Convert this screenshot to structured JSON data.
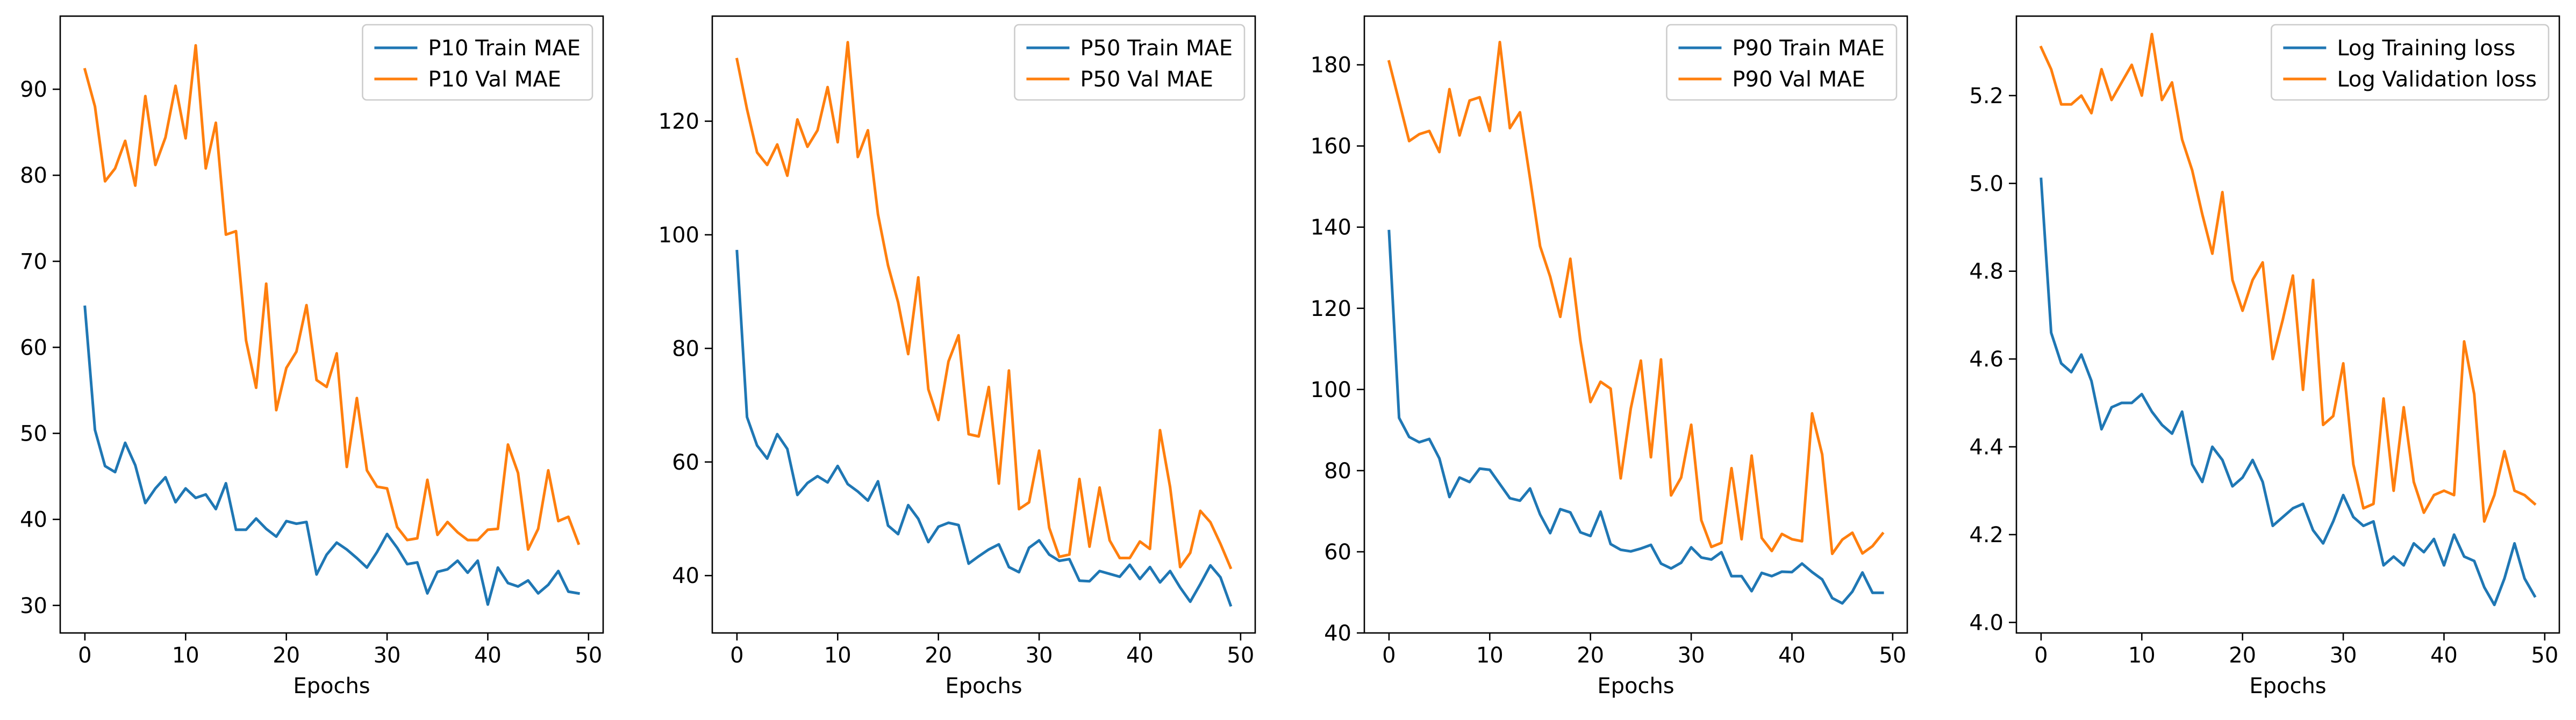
{
  "chart_data": [
    {
      "type": "line",
      "xlabel": "Epochs",
      "ylabel": "",
      "xlim": [
        -2.45,
        51.45
      ],
      "ylim": [
        26.8,
        98.5
      ],
      "xticks": [
        0,
        10,
        20,
        30,
        40,
        50
      ],
      "yticks": [
        30,
        40,
        50,
        60,
        70,
        80,
        90
      ],
      "legend": "top-right",
      "grid": false,
      "x": [
        0,
        1,
        2,
        3,
        4,
        5,
        6,
        7,
        8,
        9,
        10,
        11,
        12,
        13,
        14,
        15,
        16,
        17,
        18,
        19,
        20,
        21,
        22,
        23,
        24,
        25,
        26,
        27,
        28,
        29,
        30,
        31,
        32,
        33,
        34,
        35,
        36,
        37,
        38,
        39,
        40,
        41,
        42,
        43,
        44,
        45,
        46,
        47,
        48,
        49
      ],
      "series": [
        {
          "name": "P10 Train MAE",
          "color": "#1f77b4",
          "values": [
            64.7,
            50.4,
            46.2,
            45.5,
            48.9,
            46.3,
            41.9,
            43.6,
            44.9,
            42.0,
            43.6,
            42.5,
            42.9,
            41.2,
            44.2,
            38.8,
            38.8,
            40.1,
            38.9,
            38.0,
            39.8,
            39.5,
            39.7,
            33.6,
            35.9,
            37.3,
            36.5,
            35.5,
            34.4,
            36.2,
            38.3,
            36.7,
            34.8,
            35.0,
            31.4,
            33.9,
            34.2,
            35.2,
            33.8,
            35.2,
            30.1,
            34.4,
            32.6,
            32.2,
            32.9,
            31.4,
            32.4,
            34.0,
            31.6,
            31.4
          ]
        },
        {
          "name": "P10 Val MAE",
          "color": "#ff7f0e",
          "values": [
            92.3,
            88.0,
            79.3,
            80.8,
            84.0,
            78.8,
            89.2,
            81.2,
            84.4,
            90.4,
            84.3,
            95.1,
            80.8,
            86.1,
            73.1,
            73.5,
            60.8,
            55.3,
            67.4,
            52.7,
            57.6,
            59.5,
            64.9,
            56.2,
            55.4,
            59.3,
            46.1,
            54.1,
            45.7,
            43.8,
            43.6,
            39.1,
            37.6,
            37.8,
            44.6,
            38.2,
            39.7,
            38.5,
            37.6,
            37.6,
            38.8,
            38.9,
            48.7,
            45.4,
            36.5,
            38.9,
            45.7,
            39.8,
            40.3,
            37.2
          ]
        }
      ]
    },
    {
      "type": "line",
      "xlabel": "Epochs",
      "ylabel": "",
      "xlim": [
        -2.45,
        51.45
      ],
      "ylim": [
        29.9,
        138.5
      ],
      "xticks": [
        0,
        10,
        20,
        30,
        40,
        50
      ],
      "yticks": [
        40,
        60,
        80,
        100,
        120
      ],
      "legend": "top-right",
      "grid": false,
      "x": [
        0,
        1,
        2,
        3,
        4,
        5,
        6,
        7,
        8,
        9,
        10,
        11,
        12,
        13,
        14,
        15,
        16,
        17,
        18,
        19,
        20,
        21,
        22,
        23,
        24,
        25,
        26,
        27,
        28,
        29,
        30,
        31,
        32,
        33,
        34,
        35,
        36,
        37,
        38,
        39,
        40,
        41,
        42,
        43,
        44,
        45,
        46,
        47,
        48,
        49
      ],
      "series": [
        {
          "name": "P50 Train MAE",
          "color": "#1f77b4",
          "values": [
            97.1,
            67.9,
            62.9,
            60.6,
            64.9,
            62.3,
            54.2,
            56.3,
            57.5,
            56.4,
            59.3,
            56.1,
            54.8,
            53.2,
            56.6,
            48.8,
            47.3,
            52.4,
            50.0,
            45.9,
            48.6,
            49.3,
            48.9,
            42.1,
            43.4,
            44.6,
            45.5,
            41.5,
            40.6,
            44.9,
            46.2,
            43.7,
            42.6,
            42.9,
            39.1,
            39.0,
            40.8,
            40.3,
            39.8,
            41.9,
            39.4,
            41.5,
            38.8,
            40.8,
            37.9,
            35.4,
            38.5,
            41.8,
            39.7,
            34.8
          ]
        },
        {
          "name": "P50 Val MAE",
          "color": "#ff7f0e",
          "values": [
            130.9,
            122.1,
            114.5,
            112.3,
            115.9,
            110.4,
            120.3,
            115.5,
            118.4,
            126.0,
            116.3,
            133.9,
            113.7,
            118.4,
            103.6,
            94.6,
            88.1,
            79.0,
            92.5,
            72.8,
            67.4,
            77.7,
            82.3,
            64.9,
            64.5,
            73.2,
            56.2,
            76.1,
            51.7,
            52.9,
            62.0,
            48.4,
            43.3,
            43.7,
            57.0,
            45.1,
            55.5,
            46.2,
            43.1,
            43.1,
            46.0,
            44.7,
            65.6,
            55.6,
            41.5,
            44.0,
            51.4,
            49.4,
            45.6,
            41.4
          ]
        }
      ]
    },
    {
      "type": "line",
      "xlabel": "Epochs",
      "ylabel": "",
      "xlim": [
        -2.45,
        51.45
      ],
      "ylim": [
        40.0,
        192.0
      ],
      "xticks": [
        0,
        10,
        20,
        30,
        40,
        50
      ],
      "yticks": [
        40,
        60,
        80,
        100,
        120,
        140,
        160,
        180
      ],
      "legend": "top-right",
      "grid": false,
      "x": [
        0,
        1,
        2,
        3,
        4,
        5,
        6,
        7,
        8,
        9,
        10,
        11,
        12,
        13,
        14,
        15,
        16,
        17,
        18,
        19,
        20,
        21,
        22,
        23,
        24,
        25,
        26,
        27,
        28,
        29,
        30,
        31,
        32,
        33,
        34,
        35,
        36,
        37,
        38,
        39,
        40,
        41,
        42,
        43,
        44,
        45,
        46,
        47,
        48,
        49
      ],
      "series": [
        {
          "name": "P90 Train MAE",
          "color": "#1f77b4",
          "values": [
            139.0,
            93.0,
            88.3,
            87.0,
            87.8,
            83.0,
            73.5,
            78.3,
            77.2,
            80.5,
            80.2,
            76.7,
            73.2,
            72.6,
            75.6,
            69.2,
            64.6,
            70.5,
            69.7,
            64.8,
            63.9,
            69.9,
            61.9,
            60.5,
            60.1,
            60.8,
            61.7,
            57.1,
            55.9,
            57.3,
            61.1,
            58.6,
            58.1,
            59.9,
            54.0,
            54.0,
            50.3,
            54.8,
            54.0,
            55.1,
            55.0,
            57.1,
            55.0,
            53.2,
            48.6,
            47.3,
            50.2,
            54.9,
            49.9,
            49.9
          ]
        },
        {
          "name": "P90 Val MAE",
          "color": "#ff7f0e",
          "values": [
            180.8,
            171.0,
            161.2,
            162.9,
            163.7,
            158.5,
            174.0,
            162.6,
            171.2,
            172.0,
            163.7,
            185.6,
            164.4,
            168.3,
            152.0,
            135.3,
            127.8,
            117.9,
            132.2,
            112.0,
            96.9,
            101.9,
            100.2,
            78.1,
            95.3,
            107.1,
            83.3,
            107.4,
            73.9,
            78.3,
            91.3,
            67.8,
            61.2,
            62.2,
            80.6,
            63.1,
            83.7,
            63.4,
            60.2,
            64.4,
            63.1,
            62.6,
            94.1,
            84.0,
            59.5,
            63.0,
            64.7,
            59.6,
            61.4,
            64.5
          ]
        }
      ]
    },
    {
      "type": "line",
      "xlabel": "Epochs",
      "ylabel": "",
      "xlim": [
        -2.45,
        51.45
      ],
      "ylim": [
        3.976,
        5.381
      ],
      "xticks": [
        0,
        10,
        20,
        30,
        40,
        50
      ],
      "yticks": [
        4.0,
        4.2,
        4.4,
        4.6,
        4.8,
        5.0,
        5.2
      ],
      "legend": "top-right",
      "grid": false,
      "x": [
        0,
        1,
        2,
        3,
        4,
        5,
        6,
        7,
        8,
        9,
        10,
        11,
        12,
        13,
        14,
        15,
        16,
        17,
        18,
        19,
        20,
        21,
        22,
        23,
        24,
        25,
        26,
        27,
        28,
        29,
        30,
        31,
        32,
        33,
        34,
        35,
        36,
        37,
        38,
        39,
        40,
        41,
        42,
        43,
        44,
        45,
        46,
        47,
        48,
        49
      ],
      "series": [
        {
          "name": "Log Training loss",
          "color": "#1f77b4",
          "values": [
            5.01,
            4.66,
            4.59,
            4.57,
            4.61,
            4.55,
            4.44,
            4.49,
            4.5,
            4.5,
            4.52,
            4.48,
            4.45,
            4.43,
            4.48,
            4.36,
            4.32,
            4.4,
            4.37,
            4.31,
            4.33,
            4.37,
            4.32,
            4.22,
            4.24,
            4.26,
            4.27,
            4.21,
            4.18,
            4.23,
            4.29,
            4.24,
            4.22,
            4.23,
            4.13,
            4.15,
            4.13,
            4.18,
            4.16,
            4.19,
            4.13,
            4.2,
            4.15,
            4.14,
            4.08,
            4.04,
            4.1,
            4.18,
            4.1,
            4.06
          ]
        },
        {
          "name": "Log Validation loss",
          "color": "#ff7f0e",
          "values": [
            5.31,
            5.26,
            5.18,
            5.18,
            5.2,
            5.16,
            5.26,
            5.19,
            5.23,
            5.27,
            5.2,
            5.34,
            5.19,
            5.23,
            5.1,
            5.03,
            4.93,
            4.84,
            4.98,
            4.78,
            4.71,
            4.78,
            4.82,
            4.6,
            4.69,
            4.79,
            4.53,
            4.78,
            4.45,
            4.47,
            4.59,
            4.36,
            4.26,
            4.27,
            4.51,
            4.3,
            4.49,
            4.32,
            4.25,
            4.29,
            4.3,
            4.29,
            4.64,
            4.52,
            4.23,
            4.29,
            4.39,
            4.3,
            4.29,
            4.27
          ]
        }
      ]
    }
  ]
}
